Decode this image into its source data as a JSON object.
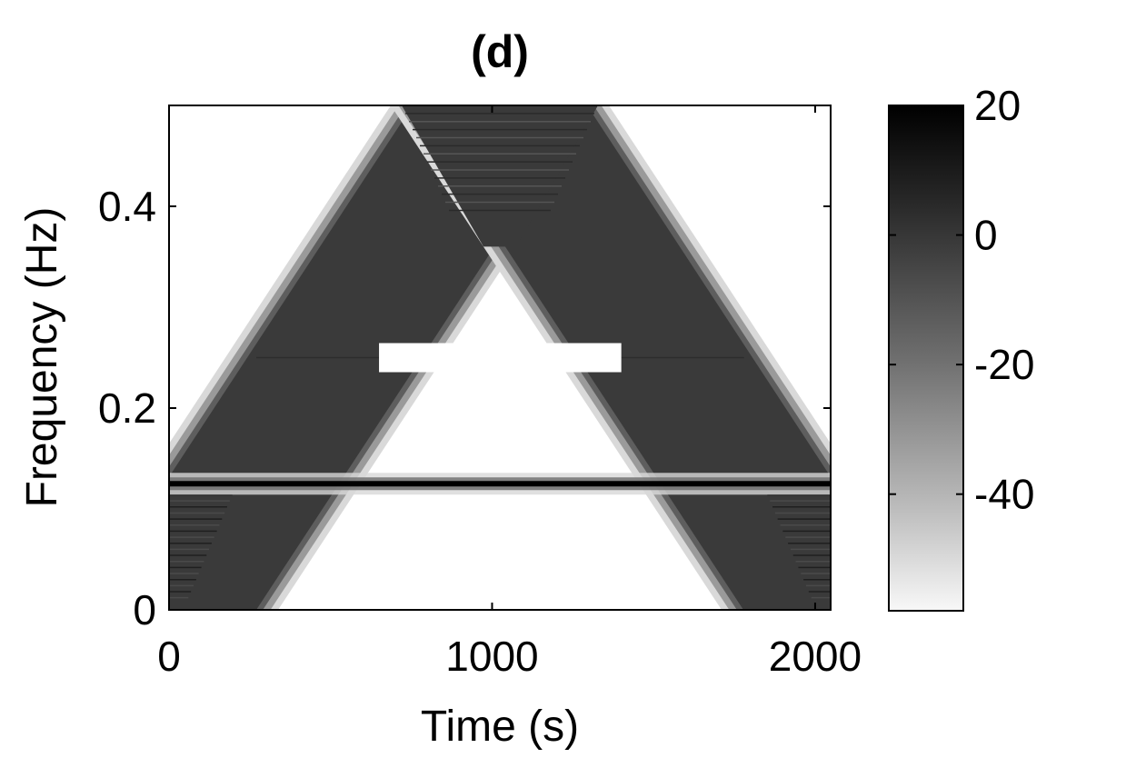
{
  "chart_data": {
    "type": "heatmap",
    "title": "(d)",
    "xlabel": "Time (s)",
    "ylabel": "Frequency (Hz)",
    "xlim": [
      0,
      2048
    ],
    "ylim": [
      0,
      0.5
    ],
    "x_ticks": [
      {
        "value": 0,
        "label": "0"
      },
      {
        "value": 1000,
        "label": "1000"
      },
      {
        "value": 2000,
        "label": "2000"
      }
    ],
    "y_ticks": [
      {
        "value": 0,
        "label": "0"
      },
      {
        "value": 0.2,
        "label": "0.2"
      },
      {
        "value": 0.4,
        "label": "0.4"
      }
    ],
    "colormap": "gray (white = low, black = high)",
    "colorbar": {
      "range": [
        -58,
        20
      ],
      "ticks": [
        {
          "value": 20,
          "label": "20"
        },
        {
          "value": 0,
          "label": "0"
        },
        {
          "value": -20,
          "label": "-20"
        },
        {
          "value": -40,
          "label": "-40"
        }
      ]
    },
    "components": [
      {
        "kind": "linear chirp",
        "from": [
          0,
          0
        ],
        "to": [
          1024,
          0.5
        ],
        "level": 5
      },
      {
        "kind": "linear chirp",
        "from": [
          1024,
          0.5
        ],
        "to": [
          2048,
          0
        ],
        "level": 5
      },
      {
        "kind": "constant tone",
        "frequency": 0.125,
        "t_range": [
          0,
          2048
        ],
        "level": 20
      },
      {
        "kind": "constant tone",
        "frequency": 0.25,
        "t_range": [
          650,
          1400
        ],
        "level": -58
      }
    ],
    "grid": false,
    "colors": {
      "background": "#ffffff",
      "high": "#000000",
      "low": "#ffffff",
      "band": "#3a3a3a"
    }
  }
}
